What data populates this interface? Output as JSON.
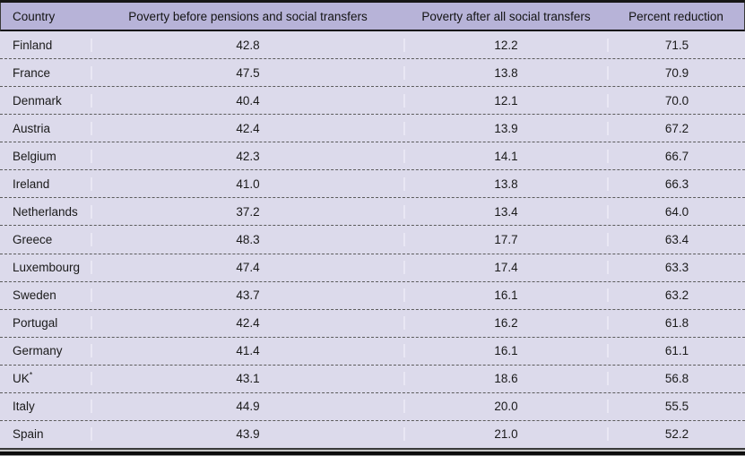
{
  "table": {
    "columns": [
      "Country",
      "Poverty before pensions and social transfers",
      "Poverty after all social transfers",
      "Percent reduction"
    ],
    "rows": [
      {
        "country": "Finland",
        "before": "42.8",
        "after": "12.2",
        "reduction": "71.5"
      },
      {
        "country": "France",
        "before": "47.5",
        "after": "13.8",
        "reduction": "70.9"
      },
      {
        "country": "Denmark",
        "before": "40.4",
        "after": "12.1",
        "reduction": "70.0"
      },
      {
        "country": "Austria",
        "before": "42.4",
        "after": "13.9",
        "reduction": "67.2"
      },
      {
        "country": "Belgium",
        "before": "42.3",
        "after": "14.1",
        "reduction": "66.7"
      },
      {
        "country": "Ireland",
        "before": "41.0",
        "after": "13.8",
        "reduction": "66.3"
      },
      {
        "country": "Netherlands",
        "before": "37.2",
        "after": "13.4",
        "reduction": "64.0"
      },
      {
        "country": "Greece",
        "before": "48.3",
        "after": "17.7",
        "reduction": "63.4"
      },
      {
        "country": "Luxembourg",
        "before": "47.4",
        "after": "17.4",
        "reduction": "63.3"
      },
      {
        "country": "Sweden",
        "before": "43.7",
        "after": "16.1",
        "reduction": "63.2"
      },
      {
        "country": "Portugal",
        "before": "42.4",
        "after": "16.2",
        "reduction": "61.8"
      },
      {
        "country": "Germany",
        "before": "41.4",
        "after": "16.1",
        "reduction": "61.1"
      },
      {
        "country": "UK",
        "sup": "*",
        "before": "43.1",
        "after": "18.6",
        "reduction": "56.8"
      },
      {
        "country": "Italy",
        "before": "44.9",
        "after": "20.0",
        "reduction": "55.5"
      },
      {
        "country": "Spain",
        "before": "43.9",
        "after": "21.0",
        "reduction": "52.2"
      }
    ]
  },
  "chart_data": {
    "type": "table",
    "title": "",
    "columns": [
      "Country",
      "Poverty before pensions and social transfers",
      "Poverty after all social transfers",
      "Percent reduction"
    ],
    "rows": [
      [
        "Finland",
        42.8,
        12.2,
        71.5
      ],
      [
        "France",
        47.5,
        13.8,
        70.9
      ],
      [
        "Denmark",
        40.4,
        12.1,
        70.0
      ],
      [
        "Austria",
        42.4,
        13.9,
        67.2
      ],
      [
        "Belgium",
        42.3,
        14.1,
        66.7
      ],
      [
        "Ireland",
        41.0,
        13.8,
        66.3
      ],
      [
        "Netherlands",
        37.2,
        13.4,
        64.0
      ],
      [
        "Greece",
        48.3,
        17.7,
        63.4
      ],
      [
        "Luxembourg",
        47.4,
        17.4,
        63.3
      ],
      [
        "Sweden",
        43.7,
        16.1,
        63.2
      ],
      [
        "Portugal",
        42.4,
        16.2,
        61.8
      ],
      [
        "Germany",
        41.4,
        16.1,
        61.1
      ],
      [
        "UK*",
        43.1,
        18.6,
        56.8
      ],
      [
        "Italy",
        44.9,
        20.0,
        55.5
      ],
      [
        "Spain",
        43.9,
        21.0,
        52.2
      ]
    ],
    "footnote_marker": "*"
  },
  "colors": {
    "header_bg": "#b7b3d8",
    "row_bg": "#dcdaeb",
    "rule": "#161616",
    "dash": "#5c5c5c",
    "text": "#1a1a1a"
  }
}
